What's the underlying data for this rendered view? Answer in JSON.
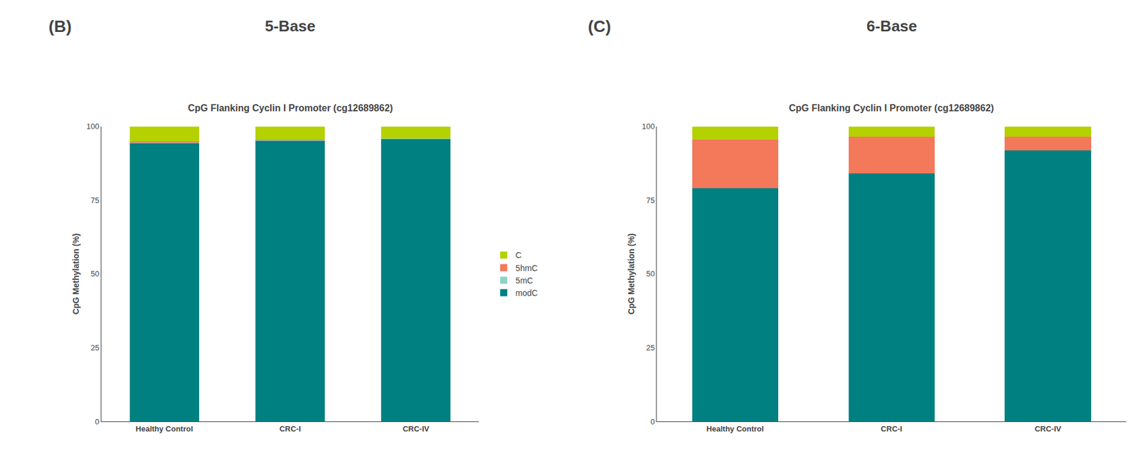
{
  "chart_data": [
    {
      "type": "bar",
      "stacked": true,
      "subtitle": "5-Base",
      "annotations": [
        "(B)"
      ],
      "title": "CpG Flanking Cyclin I Promoter (cg12689862)",
      "ylabel": "CpG Methylation (%)",
      "categories": [
        "Healthy Control",
        "CRC-I",
        "CRC-IV"
      ],
      "series": [
        {
          "name": "modC",
          "color": "#008080",
          "values": [
            94.5,
            95.2,
            95.8
          ]
        },
        {
          "name": "5mC",
          "color": "#8dd3c7",
          "values": [
            0.2,
            0.2,
            0.2
          ]
        },
        {
          "name": "5hmC",
          "color": "#f4785a",
          "values": [
            0.3,
            0.1,
            0.0
          ]
        },
        {
          "name": "C",
          "color": "#b5d100",
          "values": [
            5.0,
            4.5,
            4.0
          ]
        }
      ],
      "ylim": [
        0,
        100
      ],
      "yticks": [
        0,
        25,
        50,
        75,
        100
      ],
      "grid": false,
      "legend": "right"
    },
    {
      "type": "bar",
      "stacked": true,
      "subtitle": "6-Base",
      "annotations": [
        "(C)"
      ],
      "title": "CpG Flanking Cyclin I Promoter (cg12689862)",
      "ylabel": "CpG Methylation (%)",
      "categories": [
        "Healthy Control",
        "CRC-I",
        "CRC-IV"
      ],
      "series": [
        {
          "name": "modC",
          "color": "#008080",
          "values": [
            79.0,
            84.0,
            92.0
          ]
        },
        {
          "name": "5mC",
          "color": "#8dd3c7",
          "values": [
            0.0,
            0.0,
            0.0
          ]
        },
        {
          "name": "5hmC",
          "color": "#f4785a",
          "values": [
            16.5,
            12.5,
            4.5
          ]
        },
        {
          "name": "C",
          "color": "#b5d100",
          "values": [
            4.5,
            3.5,
            3.5
          ]
        }
      ],
      "ylim": [
        0,
        100
      ],
      "yticks": [
        0,
        25,
        50,
        75,
        100
      ],
      "grid": false
    }
  ]
}
